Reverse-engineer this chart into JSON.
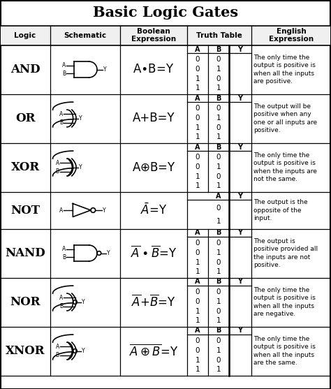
{
  "title": "Basic Logic Gates",
  "rows": [
    {
      "logic": "AND",
      "gate": "AND",
      "bool_tex": "A$\\bullet$B=Y",
      "truth_A": [
        "0",
        "0",
        "1",
        "1"
      ],
      "truth_B": [
        "0",
        "1",
        "0",
        "1"
      ],
      "english": "The only time the\noutput is positive is\nwhen all the inputs\nare positive."
    },
    {
      "logic": "OR",
      "gate": "OR",
      "bool_tex": "A+B=Y",
      "truth_A": [
        "0",
        "0",
        "1",
        "1"
      ],
      "truth_B": [
        "0",
        "1",
        "0",
        "1"
      ],
      "english": "The output will be\npositive when any\none or all inputs are\npositive."
    },
    {
      "logic": "XOR",
      "gate": "XOR",
      "bool_tex": "A$\\oplus$B=Y",
      "truth_A": [
        "0",
        "0",
        "1",
        "1"
      ],
      "truth_B": [
        "0",
        "1",
        "0",
        "1"
      ],
      "english": "The only time the\noutput is positive is\nwhen the inputs are\nnot the same."
    },
    {
      "logic": "NOT",
      "gate": "NOT",
      "bool_tex": "$\\bar{A}$=Y",
      "truth_A": [
        "0",
        "1"
      ],
      "truth_B": null,
      "english": "The output is the\nopposite of the\ninput."
    },
    {
      "logic": "NAND",
      "gate": "NAND",
      "bool_tex": "$\\overline{A}\\bullet\\overline{B}$=Y",
      "truth_A": [
        "0",
        "0",
        "1",
        "1"
      ],
      "truth_B": [
        "0",
        "1",
        "0",
        "1"
      ],
      "english": "The output is\npositive provided all\nthe inputs are not\npositive."
    },
    {
      "logic": "NOR",
      "gate": "NOR",
      "bool_tex": "$\\overline{A}$+$\\overline{B}$=Y",
      "truth_A": [
        "0",
        "0",
        "1",
        "1"
      ],
      "truth_B": [
        "0",
        "1",
        "0",
        "1"
      ],
      "english": "The only time the\noutput is positive is\nwhen all the inputs\nare negative."
    },
    {
      "logic": "XNOR",
      "gate": "XNOR",
      "bool_tex": "$\\overline{A\\oplus B}$=Y",
      "truth_A": [
        "0",
        "0",
        "1",
        "1"
      ],
      "truth_B": [
        "0",
        "1",
        "0",
        "1"
      ],
      "english": "The only time the\noutput is positive is\nwhen all the inputs\nare the same."
    }
  ],
  "bg_color": "#ffffff"
}
